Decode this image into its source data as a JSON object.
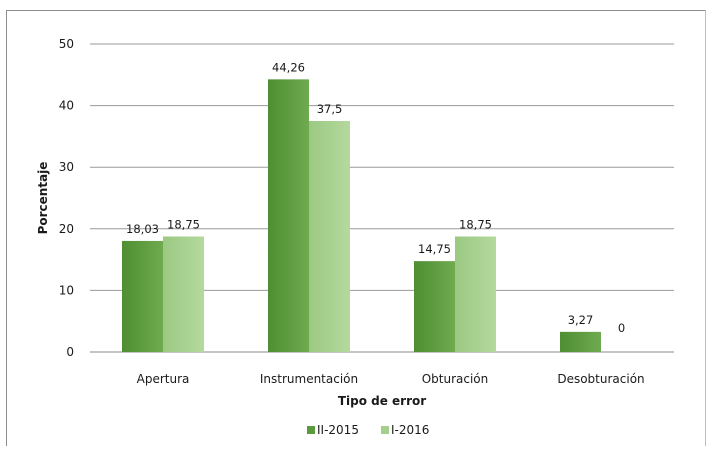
{
  "chart_data": {
    "type": "bar",
    "categories": [
      "Apertura",
      "Instrumentación",
      "Obturación",
      "Desobturación"
    ],
    "series": [
      {
        "name": "II-2015",
        "values": [
          18.03,
          44.26,
          14.75,
          3.27
        ],
        "labels": [
          "18,03",
          "44,26",
          "14,75",
          "3,27"
        ],
        "color": "#5b9a3d"
      },
      {
        "name": "I-2016",
        "values": [
          18.75,
          37.5,
          18.75,
          0
        ],
        "labels": [
          "18,75",
          "37,5",
          "18,75",
          "0"
        ],
        "color": "#a5d08c"
      }
    ],
    "xlabel": "Tipo de error",
    "ylabel": "Porcentaje",
    "ylim": [
      0,
      50
    ],
    "yticks": [
      0,
      10,
      20,
      30,
      40,
      50
    ],
    "grid": true,
    "legend_position": "bottom"
  }
}
